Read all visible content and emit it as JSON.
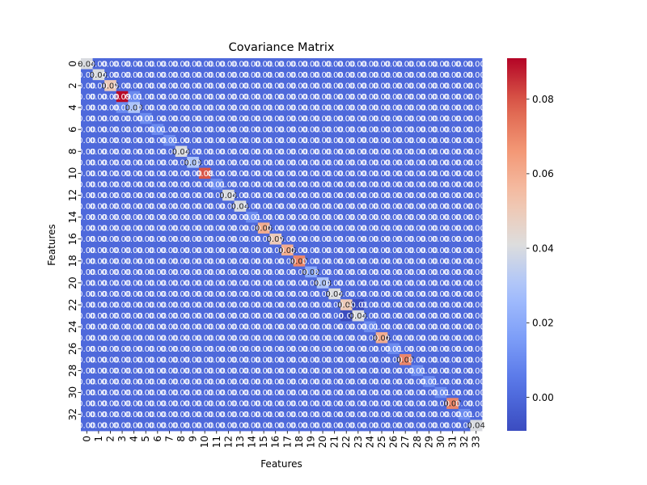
{
  "chart_data": {
    "type": "heatmap",
    "title": "Covariance Matrix",
    "xlabel": "Features",
    "ylabel": "Features",
    "size": 34,
    "x_ticks": [
      "0",
      "1",
      "2",
      "3",
      "4",
      "5",
      "6",
      "7",
      "8",
      "9",
      "10",
      "11",
      "12",
      "13",
      "14",
      "15",
      "16",
      "17",
      "18",
      "19",
      "20",
      "21",
      "22",
      "23",
      "24",
      "25",
      "26",
      "27",
      "28",
      "29",
      "30",
      "31",
      "32",
      "33"
    ],
    "y_ticks": [
      "0",
      "2",
      "4",
      "6",
      "8",
      "10",
      "12",
      "14",
      "16",
      "18",
      "20",
      "22",
      "24",
      "26",
      "28",
      "30",
      "32"
    ],
    "y_tick_indices": [
      0,
      2,
      4,
      6,
      8,
      10,
      12,
      14,
      16,
      18,
      20,
      22,
      24,
      26,
      28,
      30,
      32
    ],
    "colormap": "coolwarm",
    "vmin": -0.009,
    "vmax": 0.091,
    "colorbar_ticks": [
      0.0,
      0.02,
      0.04,
      0.06,
      0.08
    ],
    "colorbar_tick_labels": [
      "0.00",
      "0.02",
      "0.04",
      "0.06",
      "0.08"
    ],
    "background_value": 0.0,
    "background_label": "0.00",
    "diagonal_values": [
      0.04,
      0.04,
      0.05,
      0.09,
      0.03,
      0.01,
      0.01,
      0.01,
      0.04,
      0.03,
      0.08,
      0.01,
      0.04,
      0.04,
      0.01,
      0.06,
      0.05,
      0.06,
      0.07,
      0.02,
      0.03,
      0.04,
      0.05,
      0.04,
      0.01,
      0.06,
      0.01,
      0.07,
      0.01,
      0.01,
      0.01,
      0.07,
      0.01,
      0.04
    ],
    "diagonal_labels": [
      "0.04",
      "0.04",
      "0.05",
      "0.09",
      "0.03",
      "0.01",
      "0.01",
      "0.01",
      "0.04",
      "0.03",
      "0.08",
      "0.01",
      "0.04",
      "0.04",
      "0.01",
      "0.06",
      "0.05",
      "0.06",
      "0.07",
      "0.02",
      "0.03",
      "0.04",
      "0.05",
      "0.04",
      "0.01",
      "0.06",
      "0.01",
      "0.07",
      "0.01",
      "0.01",
      "0.01",
      "0.07",
      "0.01",
      "0.04"
    ],
    "off_diagonal": [
      {
        "row": 3,
        "col": 4,
        "value": 0.01,
        "label": "0.01"
      },
      {
        "row": 4,
        "col": 3,
        "value": 0.01,
        "label": "0.01"
      },
      {
        "row": 2,
        "col": 3,
        "value": 0.0,
        "label": "0.00"
      },
      {
        "row": 3,
        "col": 2,
        "value": 0.0,
        "label": "0.00"
      },
      {
        "row": 22,
        "col": 23,
        "value": -0.01,
        "label": "-0.01"
      },
      {
        "row": 23,
        "col": 22,
        "value": -0.01,
        "label": "-0.01"
      }
    ]
  }
}
